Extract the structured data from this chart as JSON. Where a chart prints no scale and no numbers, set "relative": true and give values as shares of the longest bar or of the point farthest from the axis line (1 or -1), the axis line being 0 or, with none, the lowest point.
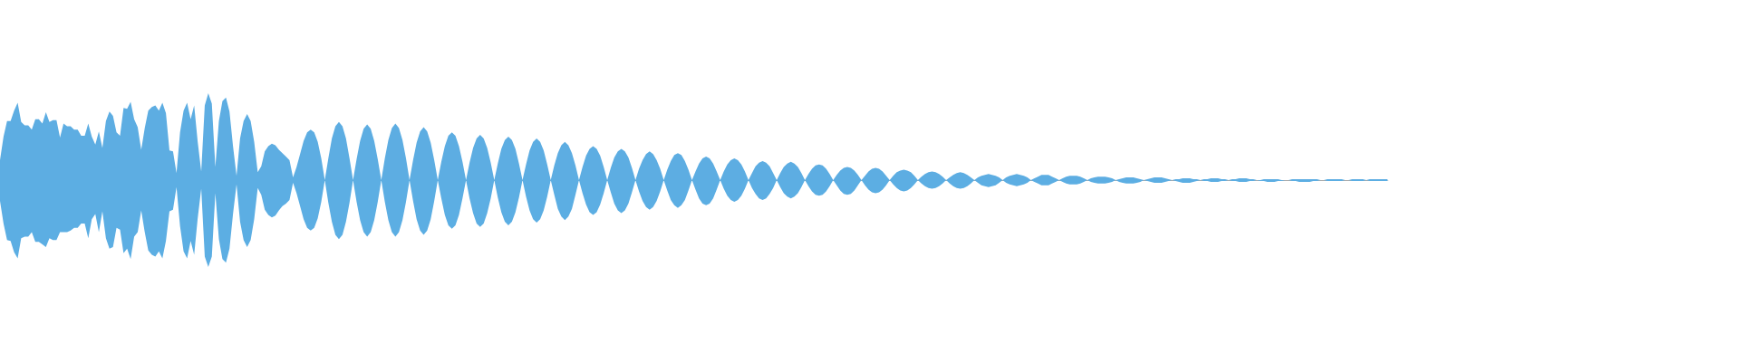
{
  "chart_data": {
    "type": "area",
    "relative": true,
    "categories": [
      null,
      null,
      null,
      null,
      null,
      null,
      null,
      null,
      null,
      null,
      null,
      null,
      null,
      null,
      null,
      null,
      null,
      null,
      null,
      null,
      null,
      null,
      null,
      null,
      null,
      null,
      null,
      null,
      null,
      null,
      null,
      null,
      null,
      null,
      null,
      null,
      null,
      null,
      null,
      null,
      null,
      null,
      null,
      null,
      null,
      null,
      null,
      null,
      null,
      null,
      null,
      null,
      null,
      null,
      null,
      null,
      null,
      null,
      null,
      null,
      null,
      null,
      null,
      null,
      null,
      null,
      null,
      null,
      null,
      null,
      null,
      null,
      null,
      null,
      null,
      null,
      null,
      null,
      null,
      null,
      null,
      null,
      null,
      null,
      null,
      null,
      null,
      null,
      null,
      null,
      null,
      null,
      null,
      null,
      null,
      null,
      null,
      null,
      null,
      null,
      null,
      null,
      null,
      null,
      null,
      null,
      null,
      null,
      null,
      null,
      null,
      null,
      null,
      null,
      null,
      null,
      null,
      null,
      null,
      null,
      null,
      null,
      null,
      null,
      null,
      null,
      null,
      null,
      null,
      null,
      null,
      null,
      null,
      null,
      null,
      null,
      null,
      null,
      null,
      null,
      null,
      null,
      null,
      null,
      null,
      null,
      null,
      null,
      null,
      null,
      null,
      null,
      null,
      null,
      null,
      null,
      null,
      null,
      null,
      null,
      null,
      null,
      null,
      null,
      null,
      null,
      null,
      null,
      null,
      null,
      null,
      null,
      null,
      null,
      null,
      null,
      null,
      null,
      null,
      null,
      null,
      null,
      null,
      null,
      null,
      null,
      null,
      null,
      null,
      null,
      null,
      null,
      null,
      null,
      null,
      null,
      null,
      null,
      null,
      null,
      null,
      null,
      null,
      null,
      null,
      null,
      null,
      null,
      null,
      null,
      null,
      null,
      null,
      null,
      null,
      null,
      null,
      null,
      null,
      null,
      null,
      null,
      null,
      null,
      null,
      null,
      null,
      null,
      null,
      null,
      null,
      null,
      null,
      null,
      null,
      null,
      null,
      null,
      null,
      null,
      null,
      null,
      null,
      null,
      null,
      null,
      null,
      null,
      null,
      null,
      null,
      null,
      null,
      null,
      null,
      null,
      null,
      null,
      null,
      null,
      null,
      null,
      null,
      null,
      null,
      null,
      null,
      null,
      null,
      null,
      null,
      null,
      null,
      null,
      null,
      null,
      null,
      null,
      null,
      null,
      null,
      null,
      null,
      null,
      null,
      null,
      null,
      null,
      null,
      null,
      null,
      null,
      null,
      null,
      null,
      null,
      null,
      null,
      null,
      null,
      null,
      null,
      null,
      null,
      null,
      null,
      null,
      null,
      null,
      null,
      null,
      null,
      null,
      null,
      null,
      null,
      null,
      null,
      null,
      null,
      null,
      null,
      null,
      null,
      null,
      null,
      null,
      null,
      null,
      null,
      null,
      null,
      null,
      null,
      null,
      null,
      null,
      null,
      null,
      null,
      null,
      null,
      null,
      null,
      null,
      null,
      null,
      null,
      null,
      null,
      null,
      null,
      null,
      null,
      null,
      null,
      null,
      null,
      null,
      null,
      null,
      null,
      null,
      null,
      null,
      null,
      null,
      null,
      null,
      null,
      null,
      null,
      null,
      null,
      null,
      null,
      null,
      null,
      null,
      null,
      null,
      null,
      null,
      null,
      null,
      null,
      null,
      null,
      null,
      null,
      null,
      null,
      null,
      null
    ],
    "series": [
      {
        "color": "#5dade2",
        "values": [
          0.23,
          0.5,
          0.68,
          0.68,
          0.8,
          0.89,
          0.67,
          0.63,
          0.63,
          0.58,
          0.7,
          0.7,
          0.65,
          0.78,
          0.67,
          0.69,
          0.69,
          0.49,
          0.65,
          0.62,
          0.62,
          0.58,
          0.58,
          0.51,
          0.51,
          0.65,
          0.5,
          0.41,
          0.56,
          0.37,
          0.68,
          0.79,
          0.74,
          0.55,
          0.51,
          0.83,
          0.82,
          0.9,
          0.7,
          0.61,
          0.35,
          0.6,
          0.8,
          0.84,
          0.86,
          0.8,
          0.89,
          0.77,
          0.34,
          0.33,
          0.08,
          0.55,
          0.8,
          0.89,
          0.7,
          0.86,
          0.44,
          0.1,
          0.86,
          1,
          0.88,
          0.15,
          0.68,
          0.91,
          0.95,
          0.79,
          0.39,
          0.05,
          0.48,
          0.68,
          0.76,
          0.68,
          0.44,
          0.09,
          0.16,
          0.33,
          0.39,
          0.42,
          0.4,
          0.35,
          0.31,
          0.27,
          0.23,
          0.03,
          0.15,
          0.3,
          0.45,
          0.55,
          0.58,
          0.55,
          0.44,
          0.25,
          0,
          0.25,
          0.48,
          0.62,
          0.67,
          0.62,
          0.48,
          0.25,
          0,
          0.24,
          0.45,
          0.59,
          0.64,
          0.59,
          0.45,
          0.24,
          0,
          0.25,
          0.46,
          0.6,
          0.65,
          0.6,
          0.46,
          0.25,
          0,
          0.23,
          0.43,
          0.56,
          0.61,
          0.56,
          0.43,
          0.23,
          0,
          0.21,
          0.39,
          0.51,
          0.55,
          0.51,
          0.39,
          0.21,
          0,
          0.2,
          0.37,
          0.48,
          0.52,
          0.48,
          0.37,
          0.2,
          0,
          0.19,
          0.36,
          0.46,
          0.5,
          0.46,
          0.36,
          0.19,
          0,
          0.18,
          0.34,
          0.44,
          0.48,
          0.44,
          0.34,
          0.18,
          0,
          0.17,
          0.31,
          0.4,
          0.44,
          0.4,
          0.31,
          0.17,
          0,
          0.15,
          0.28,
          0.36,
          0.39,
          0.36,
          0.28,
          0.15,
          0,
          0.14,
          0.26,
          0.33,
          0.36,
          0.33,
          0.26,
          0.14,
          0,
          0.13,
          0.23,
          0.3,
          0.33,
          0.3,
          0.23,
          0.13,
          0,
          0.12,
          0.22,
          0.29,
          0.31,
          0.29,
          0.22,
          0.12,
          0,
          0.1,
          0.19,
          0.25,
          0.27,
          0.25,
          0.19,
          0.1,
          0,
          0.1,
          0.18,
          0.23,
          0.25,
          0.23,
          0.18,
          0.1,
          0,
          0.08,
          0.16,
          0.2,
          0.22,
          0.2,
          0.16,
          0.08,
          0,
          0.08,
          0.15,
          0.19,
          0.21,
          0.19,
          0.15,
          0.08,
          0,
          0.07,
          0.13,
          0.17,
          0.18,
          0.17,
          0.13,
          0.07,
          0,
          0.06,
          0.11,
          0.14,
          0.15,
          0.14,
          0.11,
          0.06,
          0,
          0.05,
          0.1,
          0.13,
          0.14,
          0.13,
          0.1,
          0.05,
          0,
          0.05,
          0.09,
          0.11,
          0.12,
          0.11,
          0.09,
          0.05,
          0,
          0.04,
          0.07,
          0.09,
          0.1,
          0.09,
          0.07,
          0.04,
          0,
          0.03,
          0.06,
          0.08,
          0.09,
          0.08,
          0.06,
          0.03,
          0,
          0.03,
          0.05,
          0.06,
          0.07,
          0.06,
          0.05,
          0.03,
          0,
          0.03,
          0.05,
          0.06,
          0.07,
          0.06,
          0.05,
          0.03,
          0,
          0.02,
          0.04,
          0.06,
          0.06,
          0.06,
          0.04,
          0.02,
          0,
          0.02,
          0.04,
          0.05,
          0.05,
          0.05,
          0.04,
          0.02,
          0,
          0.02,
          0.03,
          0.04,
          0.04,
          0.04,
          0.03,
          0.02,
          0,
          0.01,
          0.02,
          0.03,
          0.03,
          0.03,
          0.02,
          0.01,
          0,
          0.01,
          0.02,
          0.03,
          0.03,
          0.03,
          0.02,
          0.01,
          0,
          0.01,
          0.01,
          0.02,
          0.02,
          0.02,
          0.01,
          0.01,
          0,
          0.01,
          0.01,
          0.02,
          0.02,
          0.02,
          0.01,
          0.01,
          0,
          0.01,
          0.01,
          0.02,
          0.02,
          0.02,
          0.01,
          0.01,
          0,
          0,
          0.01,
          0.01,
          0.01,
          0.01,
          0.01,
          0,
          0,
          0,
          0.01,
          0.01,
          0.01,
          0.01,
          0.01,
          0.01,
          0.01,
          0.01,
          0,
          0,
          0.01,
          0.01,
          0.01,
          0.01,
          0.01,
          0,
          0,
          0.01,
          0.01,
          0.01,
          0.01,
          0,
          0.01,
          0.01,
          0.01,
          0.01,
          0.01,
          0.01
        ]
      },
      {
        "color": "#5caee3",
        "values": [
          -0.24,
          -0.5,
          -0.69,
          -0.7,
          -0.83,
          -0.9,
          -0.67,
          -0.65,
          -0.65,
          -0.6,
          -0.71,
          -0.71,
          -0.74,
          -0.77,
          -0.67,
          -0.69,
          -0.69,
          -0.6,
          -0.6,
          -0.6,
          -0.58,
          -0.55,
          -0.55,
          -0.5,
          -0.5,
          -0.67,
          -0.45,
          -0.39,
          -0.6,
          -0.36,
          -0.67,
          -0.79,
          -0.77,
          -0.55,
          -0.57,
          -0.84,
          -0.79,
          -0.91,
          -0.65,
          -0.6,
          -0.35,
          -0.6,
          -0.81,
          -0.86,
          -0.88,
          -0.82,
          -0.9,
          -0.7,
          -0.36,
          -0.34,
          -0.08,
          -0.53,
          -0.82,
          -0.9,
          -0.7,
          -0.86,
          -0.44,
          -0.1,
          -0.88,
          -1,
          -0.88,
          -0.15,
          -0.68,
          -0.91,
          -0.95,
          -0.79,
          -0.39,
          -0.05,
          -0.48,
          -0.69,
          -0.77,
          -0.69,
          -0.45,
          -0.09,
          -0.17,
          -0.34,
          -0.4,
          -0.43,
          -0.41,
          -0.35,
          -0.3,
          -0.27,
          -0.23,
          -0.03,
          -0.15,
          -0.3,
          -0.45,
          -0.55,
          -0.58,
          -0.55,
          -0.44,
          -0.25,
          0,
          -0.26,
          -0.48,
          -0.63,
          -0.68,
          -0.63,
          -0.48,
          -0.26,
          0,
          -0.25,
          -0.46,
          -0.6,
          -0.65,
          -0.6,
          -0.46,
          -0.25,
          0,
          -0.25,
          -0.46,
          -0.6,
          -0.65,
          -0.6,
          -0.46,
          -0.25,
          0,
          -0.24,
          -0.45,
          -0.58,
          -0.63,
          -0.58,
          -0.45,
          -0.24,
          0,
          -0.21,
          -0.4,
          -0.52,
          -0.56,
          -0.52,
          -0.4,
          -0.21,
          0,
          -0.21,
          -0.38,
          -0.5,
          -0.54,
          -0.5,
          -0.38,
          -0.21,
          0,
          -0.2,
          -0.37,
          -0.48,
          -0.52,
          -0.48,
          -0.37,
          -0.2,
          0,
          -0.19,
          -0.35,
          -0.45,
          -0.49,
          -0.45,
          -0.35,
          -0.19,
          0,
          -0.17,
          -0.33,
          -0.42,
          -0.46,
          -0.42,
          -0.33,
          -0.17,
          0,
          -0.15,
          -0.28,
          -0.37,
          -0.4,
          -0.37,
          -0.28,
          -0.15,
          0,
          -0.14,
          -0.27,
          -0.35,
          -0.38,
          -0.35,
          -0.27,
          -0.14,
          0,
          -0.13,
          -0.24,
          -0.31,
          -0.34,
          -0.31,
          -0.24,
          -0.13,
          0,
          -0.12,
          -0.23,
          -0.29,
          -0.32,
          -0.29,
          -0.23,
          -0.12,
          0,
          -0.11,
          -0.21,
          -0.27,
          -0.29,
          -0.27,
          -0.21,
          -0.11,
          0,
          -0.1,
          -0.18,
          -0.23,
          -0.25,
          -0.23,
          -0.18,
          -0.1,
          0,
          -0.09,
          -0.16,
          -0.21,
          -0.23,
          -0.21,
          -0.16,
          -0.09,
          0,
          -0.08,
          -0.15,
          -0.19,
          -0.21,
          -0.19,
          -0.15,
          -0.08,
          0,
          -0.07,
          -0.13,
          -0.17,
          -0.18,
          -0.17,
          -0.13,
          -0.07,
          0,
          -0.06,
          -0.12,
          -0.16,
          -0.17,
          -0.16,
          -0.12,
          -0.06,
          0,
          -0.06,
          -0.11,
          -0.14,
          -0.15,
          -0.14,
          -0.11,
          -0.06,
          0,
          -0.05,
          -0.09,
          -0.12,
          -0.13,
          -0.12,
          -0.09,
          -0.05,
          0,
          -0.04,
          -0.07,
          -0.09,
          -0.1,
          -0.09,
          -0.07,
          -0.04,
          0,
          -0.04,
          -0.07,
          -0.09,
          -0.1,
          -0.09,
          -0.07,
          -0.04,
          0,
          -0.03,
          -0.06,
          -0.07,
          -0.08,
          -0.07,
          -0.06,
          -0.03,
          0,
          -0.03,
          -0.05,
          -0.06,
          -0.07,
          -0.06,
          -0.05,
          -0.03,
          0,
          -0.02,
          -0.04,
          -0.06,
          -0.06,
          -0.06,
          -0.04,
          -0.02,
          0,
          -0.02,
          -0.04,
          -0.05,
          -0.05,
          -0.05,
          -0.04,
          -0.02,
          0,
          -0.02,
          -0.03,
          -0.04,
          -0.04,
          -0.04,
          -0.03,
          -0.02,
          0,
          -0.02,
          -0.03,
          -0.04,
          -0.04,
          -0.04,
          -0.03,
          -0.02,
          0,
          -0.01,
          -0.02,
          -0.03,
          -0.03,
          -0.03,
          -0.02,
          -0.01,
          0,
          -0.01,
          -0.02,
          -0.03,
          -0.03,
          -0.03,
          -0.02,
          -0.01,
          0,
          -0.01,
          -0.01,
          -0.02,
          -0.02,
          -0.02,
          -0.01,
          -0.01,
          0,
          -0.01,
          -0.01,
          -0.02,
          -0.02,
          -0.02,
          -0.01,
          -0.01,
          0,
          -0.01,
          -0.01,
          -0.02,
          -0.02,
          -0.02,
          -0.01,
          -0.01,
          0,
          0,
          -0.01,
          -0.01,
          -0.02,
          -0.02,
          -0.02,
          -0.02,
          -0.01,
          -0.01,
          0,
          0,
          -0.01,
          -0.01,
          -0.01,
          -0.01,
          -0.01,
          0,
          0,
          -0.01,
          -0.01,
          -0.01,
          -0.01,
          0,
          -0.01,
          -0.01,
          -0.01,
          -0.01,
          -0.01,
          -0.01
        ]
      }
    ]
  }
}
